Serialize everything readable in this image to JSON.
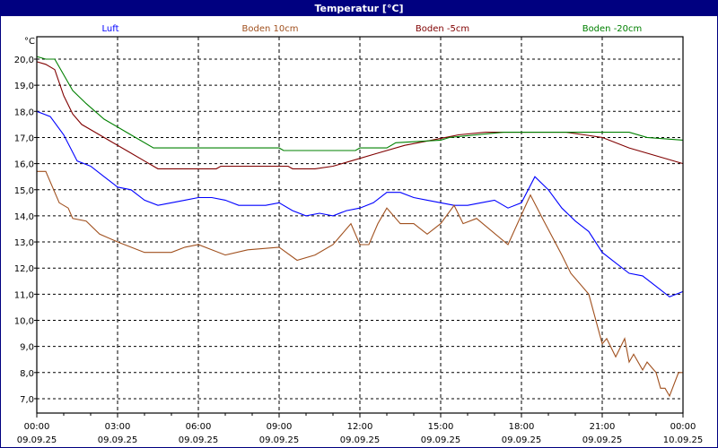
{
  "window": {
    "title": "Temperatur [°C]"
  },
  "chart_data": {
    "type": "line",
    "title": "Temperatur [°C]",
    "ylabel": "°C",
    "ylim": [
      6.5,
      20.8
    ],
    "xlim": [
      "09.09.25 00:00",
      "10.09.25 00:00"
    ],
    "grid": true,
    "legend_position": "top",
    "y_ticks": [
      {
        "v": 20,
        "label": "20,0"
      },
      {
        "v": 19,
        "label": "19,0"
      },
      {
        "v": 18,
        "label": "18,0"
      },
      {
        "v": 17,
        "label": "17,0"
      },
      {
        "v": 16,
        "label": "16,0"
      },
      {
        "v": 15,
        "label": "15,0"
      },
      {
        "v": 14,
        "label": "14,0"
      },
      {
        "v": 13,
        "label": "13,0"
      },
      {
        "v": 12,
        "label": "12,0"
      },
      {
        "v": 11,
        "label": "11,0"
      },
      {
        "v": 10,
        "label": "10,0"
      },
      {
        "v": 9,
        "label": "9,0"
      },
      {
        "v": 8,
        "label": "8,0"
      },
      {
        "v": 7,
        "label": "7,0"
      }
    ],
    "x_ticks": [
      {
        "t": "09.09.25 00:00",
        "time": "00:00",
        "date": "09.09.25"
      },
      {
        "t": "09.09.25 03:00",
        "time": "03:00",
        "date": "09.09.25"
      },
      {
        "t": "09.09.25 06:00",
        "time": "06:00",
        "date": "09.09.25"
      },
      {
        "t": "09.09.25 09:00",
        "time": "09:00",
        "date": "09.09.25"
      },
      {
        "t": "09.09.25 12:00",
        "time": "12:00",
        "date": "09.09.25"
      },
      {
        "t": "09.09.25 15:00",
        "time": "15:00",
        "date": "09.09.25"
      },
      {
        "t": "09.09.25 18:00",
        "time": "18:00",
        "date": "09.09.25"
      },
      {
        "t": "09.09.25 21:00",
        "time": "21:00",
        "date": "09.09.25"
      },
      {
        "t": "10.09.25 00:00",
        "time": "00:00",
        "date": "10.09.25"
      }
    ],
    "series": [
      {
        "name": "Luft",
        "color": "#0000ff",
        "points": [
          [
            "09.09.25 00:00",
            18.0
          ],
          [
            "09.09.25 00:30",
            17.8
          ],
          [
            "09.09.25 01:00",
            17.1
          ],
          [
            "09.09.25 01:30",
            16.1
          ],
          [
            "09.09.25 02:00",
            15.9
          ],
          [
            "09.09.25 02:30",
            15.5
          ],
          [
            "09.09.25 03:00",
            15.1
          ],
          [
            "09.09.25 03:30",
            15.0
          ],
          [
            "09.09.25 04:00",
            14.6
          ],
          [
            "09.09.25 04:30",
            14.4
          ],
          [
            "09.09.25 05:00",
            14.5
          ],
          [
            "09.09.25 05:30",
            14.6
          ],
          [
            "09.09.25 06:00",
            14.7
          ],
          [
            "09.09.25 06:30",
            14.7
          ],
          [
            "09.09.25 07:00",
            14.6
          ],
          [
            "09.09.25 07:30",
            14.4
          ],
          [
            "09.09.25 08:00",
            14.4
          ],
          [
            "09.09.25 08:30",
            14.4
          ],
          [
            "09.09.25 09:00",
            14.5
          ],
          [
            "09.09.25 09:30",
            14.2
          ],
          [
            "09.09.25 10:00",
            14.0
          ],
          [
            "09.09.25 10:30",
            14.1
          ],
          [
            "09.09.25 11:00",
            14.0
          ],
          [
            "09.09.25 11:30",
            14.2
          ],
          [
            "09.09.25 12:00",
            14.3
          ],
          [
            "09.09.25 12:30",
            14.5
          ],
          [
            "09.09.25 13:00",
            14.9
          ],
          [
            "09.09.25 13:30",
            14.9
          ],
          [
            "09.09.25 14:00",
            14.7
          ],
          [
            "09.09.25 14:30",
            14.6
          ],
          [
            "09.09.25 15:00",
            14.5
          ],
          [
            "09.09.25 15:30",
            14.4
          ],
          [
            "09.09.25 16:00",
            14.4
          ],
          [
            "09.09.25 16:30",
            14.5
          ],
          [
            "09.09.25 17:00",
            14.6
          ],
          [
            "09.09.25 17:30",
            14.3
          ],
          [
            "09.09.25 18:00",
            14.5
          ],
          [
            "09.09.25 18:30",
            15.5
          ],
          [
            "09.09.25 19:00",
            15.0
          ],
          [
            "09.09.25 19:30",
            14.3
          ],
          [
            "09.09.25 20:00",
            13.8
          ],
          [
            "09.09.25 20:30",
            13.4
          ],
          [
            "09.09.25 21:00",
            12.6
          ],
          [
            "09.09.25 21:30",
            12.2
          ],
          [
            "09.09.25 22:00",
            11.8
          ],
          [
            "09.09.25 22:30",
            11.7
          ],
          [
            "09.09.25 23:00",
            11.3
          ],
          [
            "09.09.25 23:30",
            10.9
          ],
          [
            "10.09.25 00:00",
            11.1
          ]
        ]
      },
      {
        "name": "Boden 10cm",
        "color": "#a0501e",
        "points": [
          [
            "09.09.25 00:00",
            15.7
          ],
          [
            "09.09.25 00:20",
            15.7
          ],
          [
            "09.09.25 00:50",
            14.5
          ],
          [
            "09.09.25 01:10",
            14.3
          ],
          [
            "09.09.25 01:20",
            13.9
          ],
          [
            "09.09.25 01:50",
            13.8
          ],
          [
            "09.09.25 02:20",
            13.3
          ],
          [
            "09.09.25 03:00",
            13.0
          ],
          [
            "09.09.25 04:00",
            12.6
          ],
          [
            "09.09.25 05:00",
            12.6
          ],
          [
            "09.09.25 05:30",
            12.8
          ],
          [
            "09.09.25 06:00",
            12.9
          ],
          [
            "09.09.25 07:00",
            12.5
          ],
          [
            "09.09.25 07:50",
            12.7
          ],
          [
            "09.09.25 09:00",
            12.8
          ],
          [
            "09.09.25 09:40",
            12.3
          ],
          [
            "09.09.25 10:20",
            12.5
          ],
          [
            "09.09.25 11:00",
            12.9
          ],
          [
            "09.09.25 11:40",
            13.7
          ],
          [
            "09.09.25 12:00",
            12.9
          ],
          [
            "09.09.25 12:20",
            12.9
          ],
          [
            "09.09.25 12:40",
            13.7
          ],
          [
            "09.09.25 13:00",
            14.3
          ],
          [
            "09.09.25 13:30",
            13.7
          ],
          [
            "09.09.25 14:00",
            13.7
          ],
          [
            "09.09.25 14:30",
            13.3
          ],
          [
            "09.09.25 15:00",
            13.7
          ],
          [
            "09.09.25 15:30",
            14.4
          ],
          [
            "09.09.25 15:50",
            13.7
          ],
          [
            "09.09.25 16:20",
            13.9
          ],
          [
            "09.09.25 17:30",
            12.9
          ],
          [
            "09.09.25 18:20",
            14.8
          ],
          [
            "09.09.25 18:50",
            13.8
          ],
          [
            "09.09.25 19:30",
            12.5
          ],
          [
            "09.09.25 19:50",
            11.8
          ],
          [
            "09.09.25 20:30",
            11.0
          ],
          [
            "09.09.25 21:00",
            9.1
          ],
          [
            "09.09.25 21:10",
            9.3
          ],
          [
            "09.09.25 21:30",
            8.6
          ],
          [
            "09.09.25 21:50",
            9.3
          ],
          [
            "09.09.25 22:00",
            8.4
          ],
          [
            "09.09.25 22:10",
            8.7
          ],
          [
            "09.09.25 22:30",
            8.1
          ],
          [
            "09.09.25 22:40",
            8.4
          ],
          [
            "09.09.25 23:00",
            8.0
          ],
          [
            "09.09.25 23:10",
            7.4
          ],
          [
            "09.09.25 23:20",
            7.4
          ],
          [
            "09.09.25 23:30",
            7.1
          ],
          [
            "09.09.25 23:50",
            8.0
          ],
          [
            "10.09.25 00:00",
            8.0
          ]
        ]
      },
      {
        "name": "Boden -5cm",
        "color": "#800000",
        "points": [
          [
            "09.09.25 00:00",
            19.9
          ],
          [
            "09.09.25 00:20",
            19.8
          ],
          [
            "09.09.25 00:40",
            19.6
          ],
          [
            "09.09.25 01:00",
            18.6
          ],
          [
            "09.09.25 01:20",
            17.9
          ],
          [
            "09.09.25 01:40",
            17.5
          ],
          [
            "09.09.25 02:10",
            17.2
          ],
          [
            "09.09.25 02:40",
            16.9
          ],
          [
            "09.09.25 03:20",
            16.5
          ],
          [
            "09.09.25 04:00",
            16.1
          ],
          [
            "09.09.25 04:30",
            15.8
          ],
          [
            "09.09.25 06:40",
            15.8
          ],
          [
            "09.09.25 06:50",
            15.9
          ],
          [
            "09.09.25 09:20",
            15.9
          ],
          [
            "09.09.25 09:30",
            15.8
          ],
          [
            "09.09.25 10:20",
            15.8
          ],
          [
            "09.09.25 11:00",
            15.9
          ],
          [
            "09.09.25 11:40",
            16.1
          ],
          [
            "09.09.25 12:40",
            16.4
          ],
          [
            "09.09.25 13:40",
            16.7
          ],
          [
            "09.09.25 14:40",
            16.9
          ],
          [
            "09.09.25 15:40",
            17.1
          ],
          [
            "09.09.25 16:40",
            17.2
          ],
          [
            "09.09.25 19:40",
            17.2
          ],
          [
            "09.09.25 20:20",
            17.1
          ],
          [
            "09.09.25 21:00",
            17.0
          ],
          [
            "09.09.25 22:00",
            16.6
          ],
          [
            "09.09.25 23:00",
            16.3
          ],
          [
            "10.09.25 00:00",
            16.0
          ]
        ]
      },
      {
        "name": "Boden -20cm",
        "color": "#008000",
        "points": [
          [
            "09.09.25 00:00",
            20.1
          ],
          [
            "09.09.25 00:20",
            20.0
          ],
          [
            "09.09.25 00:40",
            20.0
          ],
          [
            "09.09.25 01:00",
            19.4
          ],
          [
            "09.09.25 01:20",
            18.8
          ],
          [
            "09.09.25 01:50",
            18.3
          ],
          [
            "09.09.25 02:10",
            18.0
          ],
          [
            "09.09.25 02:30",
            17.7
          ],
          [
            "09.09.25 03:20",
            17.2
          ],
          [
            "09.09.25 04:20",
            16.6
          ],
          [
            "09.09.25 09:00",
            16.6
          ],
          [
            "09.09.25 09:10",
            16.5
          ],
          [
            "09.09.25 11:50",
            16.5
          ],
          [
            "09.09.25 12:00",
            16.6
          ],
          [
            "09.09.25 13:00",
            16.6
          ],
          [
            "09.09.25 13:20",
            16.8
          ],
          [
            "09.09.25 15:00",
            16.9
          ],
          [
            "09.09.25 15:20",
            17.0
          ],
          [
            "09.09.25 16:20",
            17.1
          ],
          [
            "09.09.25 17:20",
            17.2
          ],
          [
            "09.09.25 22:00",
            17.2
          ],
          [
            "09.09.25 22:40",
            17.0
          ],
          [
            "10.09.25 00:00",
            16.9
          ]
        ]
      }
    ]
  }
}
